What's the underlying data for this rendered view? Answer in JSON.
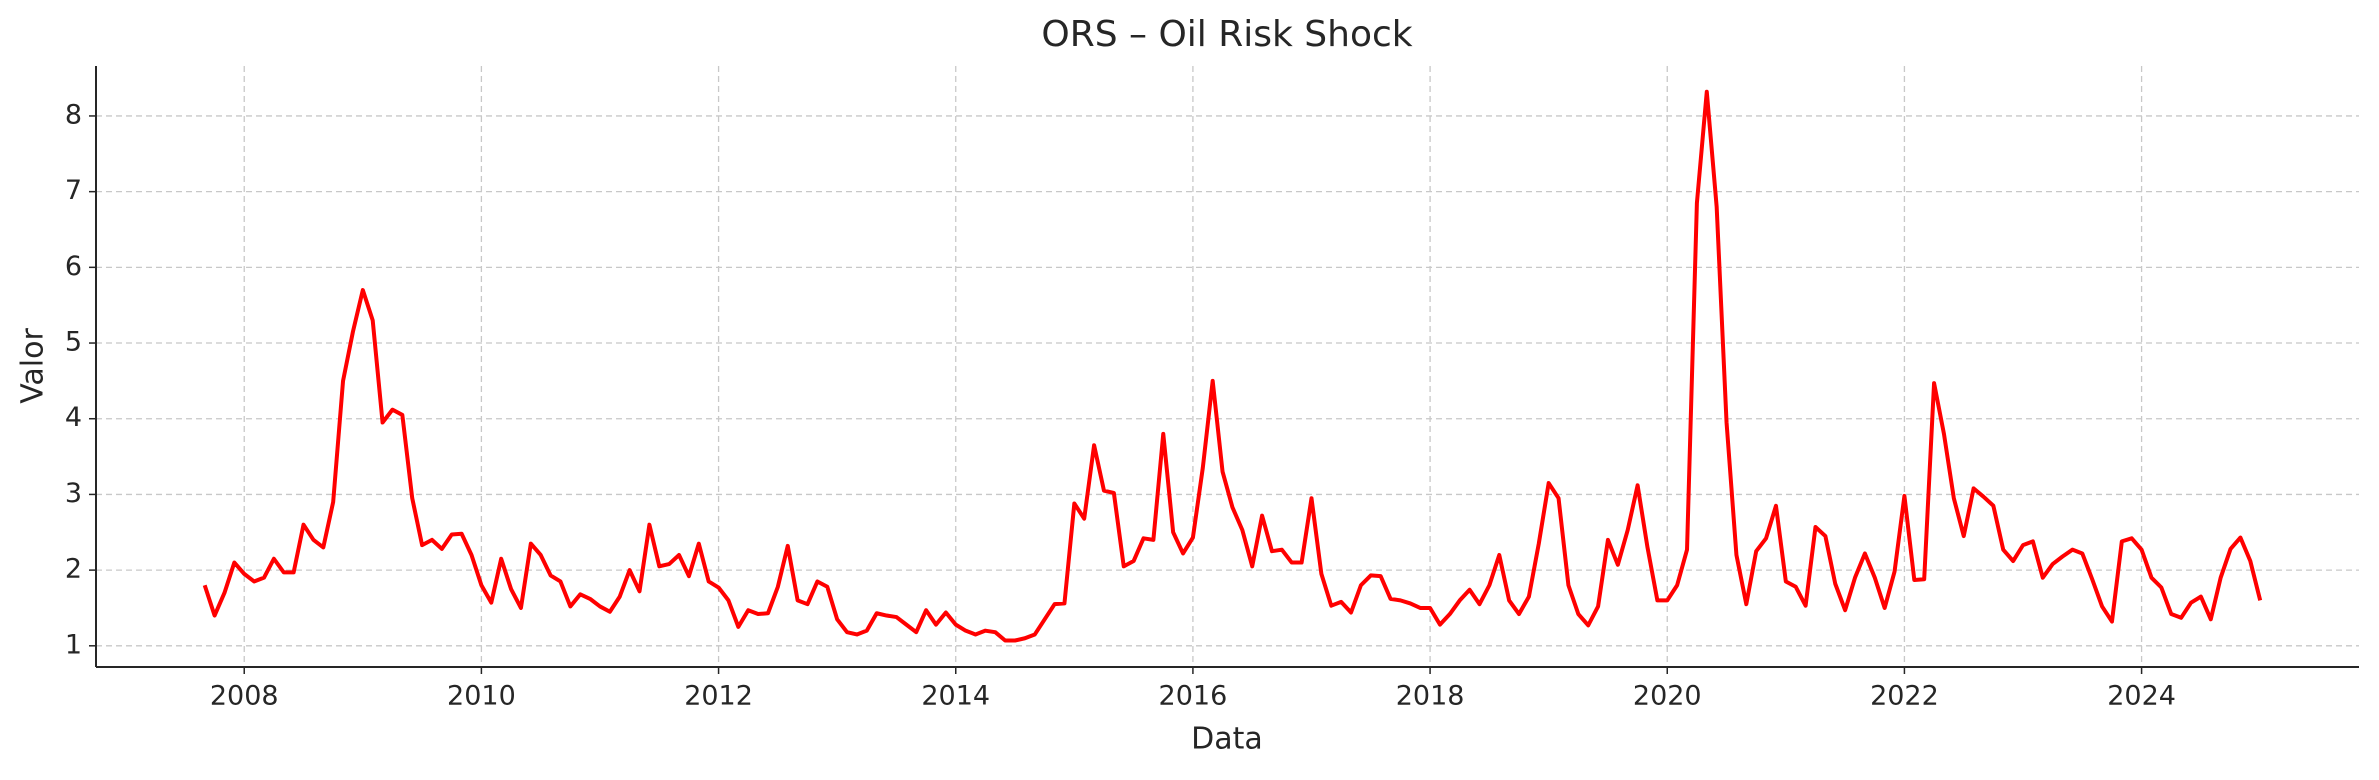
{
  "chart_data": {
    "type": "line",
    "title": "ORS – Oil Risk Shock",
    "x_label": "Data",
    "y_label": "Valor",
    "color": "#ff0000",
    "grid": true,
    "x": [
      "2007-09",
      "2007-10",
      "2007-11",
      "2007-12",
      "2008-01",
      "2008-02",
      "2008-03",
      "2008-04",
      "2008-05",
      "2008-06",
      "2008-07",
      "2008-08",
      "2008-09",
      "2008-10",
      "2008-11",
      "2008-12",
      "2009-01",
      "2009-02",
      "2009-03",
      "2009-04",
      "2009-05",
      "2009-06",
      "2009-07",
      "2009-08",
      "2009-09",
      "2009-10",
      "2009-11",
      "2009-12",
      "2010-01",
      "2010-02",
      "2010-03",
      "2010-04",
      "2010-05",
      "2010-06",
      "2010-07",
      "2010-08",
      "2010-09",
      "2010-10",
      "2010-11",
      "2010-12",
      "2011-01",
      "2011-02",
      "2011-03",
      "2011-04",
      "2011-05",
      "2011-06",
      "2011-07",
      "2011-08",
      "2011-09",
      "2011-10",
      "2011-11",
      "2011-12",
      "2012-01",
      "2012-02",
      "2012-03",
      "2012-04",
      "2012-05",
      "2012-06",
      "2012-07",
      "2012-08",
      "2012-09",
      "2012-10",
      "2012-11",
      "2012-12",
      "2013-01",
      "2013-02",
      "2013-03",
      "2013-04",
      "2013-05",
      "2013-06",
      "2013-07",
      "2013-08",
      "2013-09",
      "2013-10",
      "2013-11",
      "2013-12",
      "2014-01",
      "2014-02",
      "2014-03",
      "2014-04",
      "2014-05",
      "2014-06",
      "2014-07",
      "2014-08",
      "2014-09",
      "2014-10",
      "2014-11",
      "2014-12",
      "2015-01",
      "2015-02",
      "2015-03",
      "2015-04",
      "2015-05",
      "2015-06",
      "2015-07",
      "2015-08",
      "2015-09",
      "2015-10",
      "2015-11",
      "2015-12",
      "2016-01",
      "2016-02",
      "2016-03",
      "2016-04",
      "2016-05",
      "2016-06",
      "2016-07",
      "2016-08",
      "2016-09",
      "2016-10",
      "2016-11",
      "2016-12",
      "2017-01",
      "2017-02",
      "2017-03",
      "2017-04",
      "2017-05",
      "2017-06",
      "2017-07",
      "2017-08",
      "2017-09",
      "2017-10",
      "2017-11",
      "2017-12",
      "2018-01",
      "2018-02",
      "2018-03",
      "2018-04",
      "2018-05",
      "2018-06",
      "2018-07",
      "2018-08",
      "2018-09",
      "2018-10",
      "2018-11",
      "2018-12",
      "2019-01",
      "2019-02",
      "2019-03",
      "2019-04",
      "2019-05",
      "2019-06",
      "2019-07",
      "2019-08",
      "2019-09",
      "2019-10",
      "2019-11",
      "2019-12",
      "2020-01",
      "2020-02",
      "2020-03",
      "2020-04",
      "2020-05",
      "2020-06",
      "2020-07",
      "2020-08",
      "2020-09",
      "2020-10",
      "2020-11",
      "2020-12",
      "2021-01",
      "2021-02",
      "2021-03",
      "2021-04",
      "2021-05",
      "2021-06",
      "2021-07",
      "2021-08",
      "2021-09",
      "2021-10",
      "2021-11",
      "2021-12",
      "2022-01",
      "2022-02",
      "2022-03",
      "2022-04",
      "2022-05",
      "2022-06",
      "2022-07",
      "2022-08",
      "2022-09",
      "2022-10",
      "2022-11",
      "2022-12",
      "2023-01",
      "2023-02",
      "2023-03",
      "2023-04",
      "2023-05",
      "2023-06",
      "2023-07",
      "2023-08",
      "2023-09",
      "2023-10",
      "2023-11",
      "2023-12",
      "2024-01",
      "2024-02",
      "2024-03",
      "2024-04",
      "2024-05",
      "2024-06",
      "2024-07",
      "2024-08",
      "2024-09",
      "2024-10",
      "2024-11",
      "2024-12",
      "2025-01"
    ],
    "values": [
      1.8,
      1.4,
      1.7,
      2.1,
      1.95,
      1.85,
      1.9,
      2.15,
      1.97,
      1.97,
      2.6,
      2.4,
      2.3,
      2.9,
      4.5,
      5.15,
      5.7,
      5.3,
      3.95,
      4.12,
      4.05,
      2.95,
      2.33,
      2.4,
      2.28,
      2.47,
      2.48,
      2.2,
      1.8,
      1.57,
      2.15,
      1.75,
      1.5,
      2.35,
      2.2,
      1.93,
      1.85,
      1.52,
      1.68,
      1.62,
      1.52,
      1.45,
      1.65,
      2.0,
      1.72,
      2.6,
      2.05,
      2.08,
      2.2,
      1.92,
      2.35,
      1.85,
      1.77,
      1.6,
      1.25,
      1.47,
      1.42,
      1.43,
      1.78,
      2.32,
      1.6,
      1.55,
      1.85,
      1.78,
      1.35,
      1.18,
      1.15,
      1.2,
      1.43,
      1.4,
      1.38,
      1.28,
      1.18,
      1.47,
      1.28,
      1.44,
      1.28,
      1.2,
      1.15,
      1.2,
      1.18,
      1.07,
      1.07,
      1.1,
      1.15,
      1.35,
      1.55,
      1.56,
      2.88,
      2.68,
      3.65,
      3.05,
      3.02,
      2.05,
      2.12,
      2.42,
      2.4,
      3.8,
      2.5,
      2.22,
      2.43,
      3.35,
      4.5,
      3.3,
      2.83,
      2.53,
      2.05,
      2.72,
      2.25,
      2.27,
      2.1,
      2.1,
      2.95,
      1.95,
      1.53,
      1.58,
      1.44,
      1.8,
      1.93,
      1.92,
      1.62,
      1.6,
      1.56,
      1.5,
      1.5,
      1.28,
      1.42,
      1.6,
      1.74,
      1.55,
      1.8,
      2.2,
      1.6,
      1.42,
      1.65,
      2.35,
      3.15,
      2.95,
      1.8,
      1.42,
      1.27,
      1.52,
      2.4,
      2.07,
      2.53,
      3.12,
      2.3,
      1.6,
      1.6,
      1.8,
      2.27,
      6.85,
      8.32,
      6.8,
      3.95,
      2.2,
      1.55,
      2.25,
      2.42,
      2.85,
      1.85,
      1.78,
      1.53,
      2.57,
      2.45,
      1.82,
      1.47,
      1.9,
      2.22,
      1.9,
      1.5,
      1.98,
      2.98,
      1.87,
      1.88,
      4.47,
      3.8,
      2.95,
      2.45,
      3.08,
      2.97,
      2.85,
      2.27,
      2.12,
      2.33,
      2.38,
      1.9,
      2.08,
      2.18,
      2.27,
      2.22,
      1.88,
      1.52,
      1.32,
      2.38,
      2.42,
      2.27,
      1.9,
      1.77,
      1.42,
      1.37,
      1.57,
      1.65,
      1.35,
      1.9,
      2.28,
      2.43,
      2.12,
      1.6
    ],
    "xlim": [
      "2006-10",
      "2025-11"
    ],
    "xticks": [
      2008,
      2010,
      2012,
      2014,
      2016,
      2018,
      2020,
      2022,
      2024
    ],
    "ylim": [
      0.72,
      8.66
    ],
    "yticks": [
      1,
      2,
      3,
      4,
      5,
      6,
      7,
      8
    ]
  }
}
